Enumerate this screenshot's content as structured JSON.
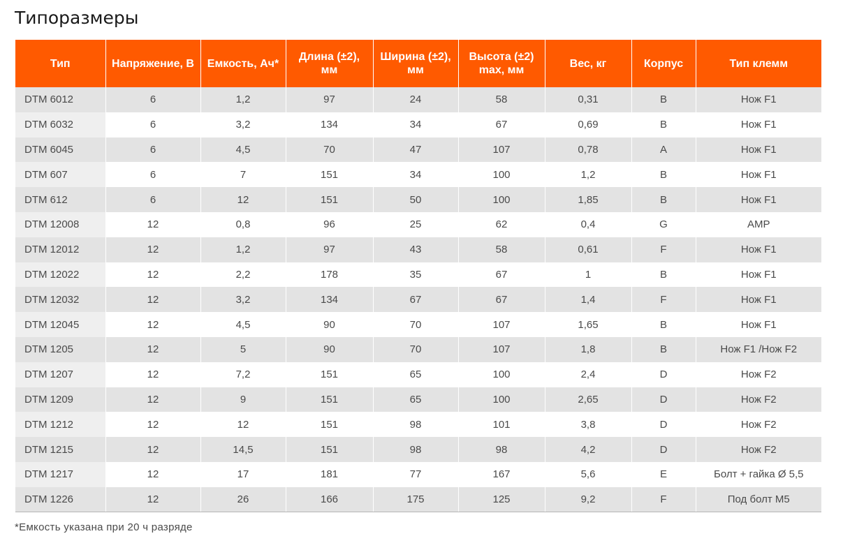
{
  "title": "Типоразмеры",
  "table": {
    "headers": [
      "Тип",
      "Напряжение, В",
      "Емкость, Ач*",
      "Длина (±2), мм",
      "Ширина (±2), мм",
      "Высота (±2) max, мм",
      "Вес, кг",
      "Корпус",
      "Тип клемм"
    ],
    "rows": [
      [
        "DTM 6012",
        "6",
        "1,2",
        "97",
        "24",
        "58",
        "0,31",
        "B",
        "Нож F1"
      ],
      [
        "DTM 6032",
        "6",
        "3,2",
        "134",
        "34",
        "67",
        "0,69",
        "B",
        "Нож F1"
      ],
      [
        "DTM 6045",
        "6",
        "4,5",
        "70",
        "47",
        "107",
        "0,78",
        "A",
        "Нож F1"
      ],
      [
        "DTM 607",
        "6",
        "7",
        "151",
        "34",
        "100",
        "1,2",
        "B",
        "Нож F1"
      ],
      [
        "DTM 612",
        "6",
        "12",
        "151",
        "50",
        "100",
        "1,85",
        "B",
        "Нож F1"
      ],
      [
        "DTM 12008",
        "12",
        "0,8",
        "96",
        "25",
        "62",
        "0,4",
        "G",
        "AMP"
      ],
      [
        "DTM 12012",
        "12",
        "1,2",
        "97",
        "43",
        "58",
        "0,61",
        "F",
        "Нож F1"
      ],
      [
        "DTM 12022",
        "12",
        "2,2",
        "178",
        "35",
        "67",
        "1",
        "B",
        "Нож F1"
      ],
      [
        "DTM 12032",
        "12",
        "3,2",
        "134",
        "67",
        "67",
        "1,4",
        "F",
        "Нож F1"
      ],
      [
        "DTM 12045",
        "12",
        "4,5",
        "90",
        "70",
        "107",
        "1,65",
        "B",
        "Нож F1"
      ],
      [
        "DTM 1205",
        "12",
        "5",
        "90",
        "70",
        "107",
        "1,8",
        "B",
        "Нож F1 /Нож F2"
      ],
      [
        "DTM 1207",
        "12",
        "7,2",
        "151",
        "65",
        "100",
        "2,4",
        "D",
        "Нож F2"
      ],
      [
        "DTM 1209",
        "12",
        "9",
        "151",
        "65",
        "100",
        "2,65",
        "D",
        "Нож F2"
      ],
      [
        "DTM 1212",
        "12",
        "12",
        "151",
        "98",
        "101",
        "3,8",
        "D",
        "Нож F2"
      ],
      [
        "DTM 1215",
        "12",
        "14,5",
        "151",
        "98",
        "98",
        "4,2",
        "D",
        "Нож F2"
      ],
      [
        "DTM 1217",
        "12",
        "17",
        "181",
        "77",
        "167",
        "5,6",
        "E",
        "Болт + гайка Ø 5,5"
      ],
      [
        "DTM 1226",
        "12",
        "26",
        "166",
        "175",
        "125",
        "9,2",
        "F",
        "Под болт M5"
      ]
    ]
  },
  "footnote": "*Емкость указана при 20 ч разряде",
  "colors": {
    "header_bg": "#ff5a00",
    "row_alt_bg": "#e3e3e3"
  }
}
